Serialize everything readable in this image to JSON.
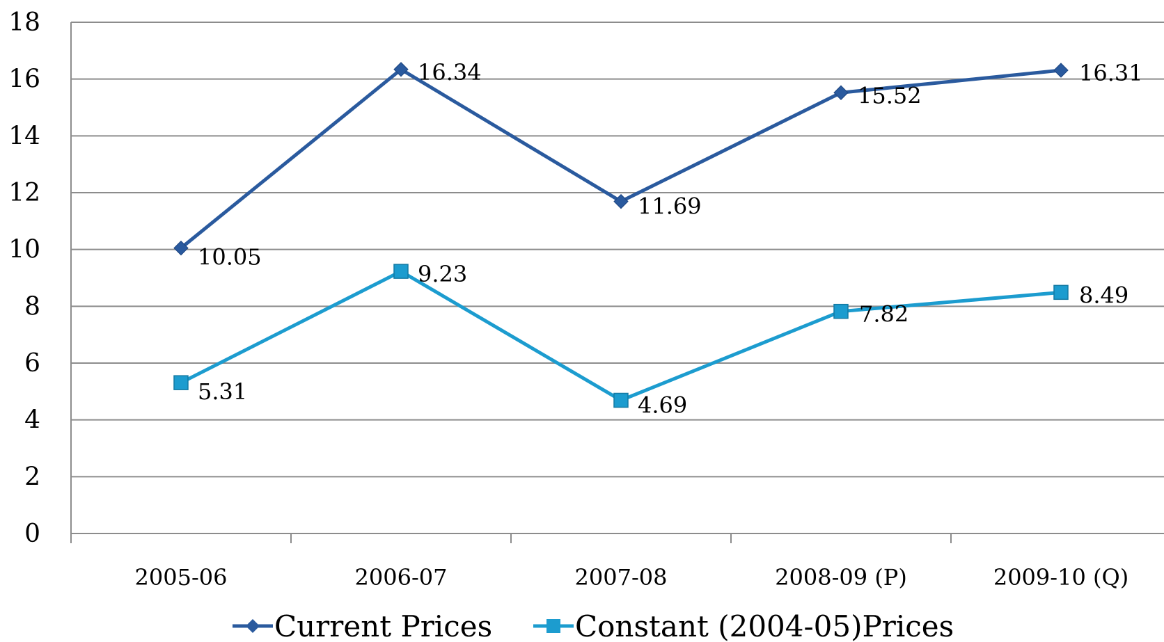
{
  "chart_data": {
    "type": "line",
    "categories": [
      "2005-06",
      "2006-07",
      "2007-08",
      "2008-09 (P)",
      "2009-10 (Q)"
    ],
    "series": [
      {
        "name": "Current Prices",
        "values": [
          10.05,
          16.34,
          11.69,
          15.52,
          16.31
        ],
        "labels": [
          "10.05",
          "16.34",
          "11.69",
          "15.52",
          "16.31"
        ],
        "color": "#2a5a9e",
        "marker": "diamond"
      },
      {
        "name": "Constant (2004-05)Prices",
        "values": [
          5.31,
          9.23,
          4.69,
          7.82,
          8.49
        ],
        "labels": [
          "5.31",
          "9.23",
          "4.69",
          "7.82",
          "8.49"
        ],
        "color": "#1c9ccf",
        "marker": "square"
      }
    ],
    "ylim": [
      0,
      18
    ],
    "yticks": [
      0,
      2,
      4,
      6,
      8,
      10,
      12,
      14,
      16,
      18
    ],
    "ytick_labels": [
      "0",
      "2",
      "4",
      "6",
      "8",
      "10",
      "12",
      "14",
      "16",
      "18"
    ],
    "grid": true,
    "legend": "bottom",
    "title": "",
    "xlabel": "",
    "ylabel": ""
  }
}
